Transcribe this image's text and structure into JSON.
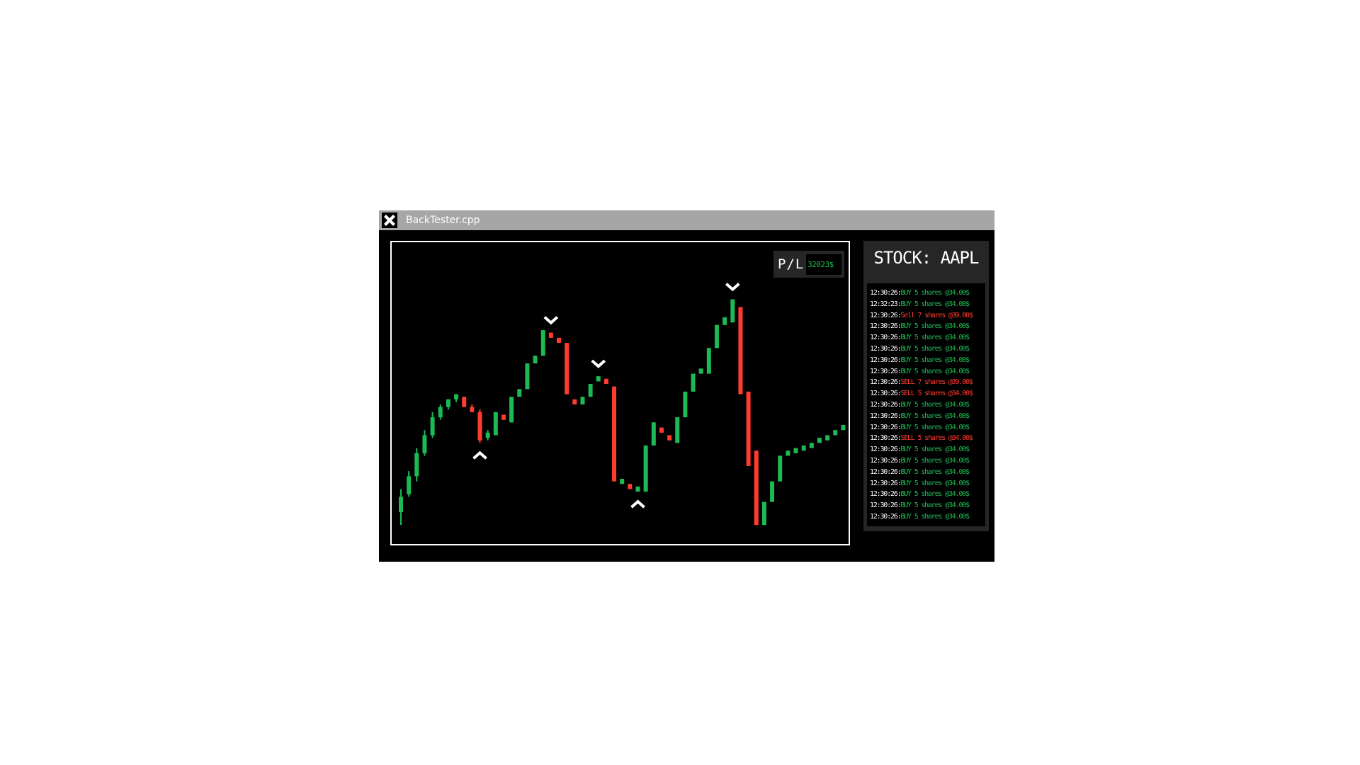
{
  "window": {
    "title": "BackTester.cpp"
  },
  "pl": {
    "label": "P/L:",
    "value": "32023$"
  },
  "stock": {
    "title": "STOCK: AAPL"
  },
  "colors": {
    "buy": "#1db954",
    "sell": "#ff3b30",
    "panel": "#262626",
    "titlebar": "#a6a6a6"
  },
  "log": [
    {
      "time": "12:30:26",
      "text": "BUY 5 shares @34.00$",
      "side": "buy"
    },
    {
      "time": "12:32:23",
      "text": "BUY 5 shares @34.00$",
      "side": "buy"
    },
    {
      "time": "12:30:26",
      "text": "Sell 7 shares @39.00$",
      "side": "sell"
    },
    {
      "time": "12:30:26",
      "text": "BUY 5 shares @34.00$",
      "side": "buy"
    },
    {
      "time": "12:30:26",
      "text": "BUY 5 shares @34.00$",
      "side": "buy"
    },
    {
      "time": "12:30:26",
      "text": "BUY 5 shares @34.00$",
      "side": "buy"
    },
    {
      "time": "12:30:26",
      "text": "BUY 5 shares @34.00$",
      "side": "buy"
    },
    {
      "time": "12:30:26",
      "text": "BUY 5 shares @34.00$",
      "side": "buy"
    },
    {
      "time": "12:30:26",
      "text": "SELL 7 shares @39.00$",
      "side": "sell"
    },
    {
      "time": "12:30:26",
      "text": "SELL 5 shares @34.00$",
      "side": "sell"
    },
    {
      "time": "12:30:26",
      "text": "BUY 5 shares @34.00$",
      "side": "buy"
    },
    {
      "time": "12:30:26",
      "text": "BUY 5 shares @34.00$",
      "side": "buy"
    },
    {
      "time": "12:30:26",
      "text": "BUY 5 shares @34.00$",
      "side": "buy"
    },
    {
      "time": "12:30:26",
      "text": "SELL 5 shares @34.00$",
      "side": "sell"
    },
    {
      "time": "12:30:26",
      "text": "BUY 5 shares @34.00$",
      "side": "buy"
    },
    {
      "time": "12:30:26",
      "text": "BUY 5 shares @34.00$",
      "side": "buy"
    },
    {
      "time": "12:30:26",
      "text": "BUY 5 shares @34.00$",
      "side": "buy"
    },
    {
      "time": "12:30:26",
      "text": "BUY 5 shares @34.00$",
      "side": "buy"
    },
    {
      "time": "12:30:26",
      "text": "BUY 5 shares @34.00$",
      "side": "buy"
    },
    {
      "time": "12:30:26",
      "text": "BUY 5 shares @34.00$",
      "side": "buy"
    },
    {
      "time": "12:30:26",
      "text": "BUY 5 shares @34.00$",
      "side": "buy"
    }
  ],
  "chart_data": {
    "type": "candlestick",
    "title": "",
    "xlabel": "",
    "ylabel": "",
    "ylim": [
      0,
      100
    ],
    "grid": false,
    "candles": [
      {
        "o": 8,
        "h": 17,
        "l": 3,
        "c": 14
      },
      {
        "o": 15,
        "h": 24,
        "l": 14,
        "c": 22
      },
      {
        "o": 22,
        "h": 33,
        "l": 20,
        "c": 31
      },
      {
        "o": 31,
        "h": 40,
        "l": 30,
        "c": 38
      },
      {
        "o": 38,
        "h": 47,
        "l": 37,
        "c": 45
      },
      {
        "o": 45,
        "h": 50,
        "l": 44,
        "c": 49
      },
      {
        "o": 49,
        "h": 52,
        "l": 48,
        "c": 52
      },
      {
        "o": 52,
        "h": 54,
        "l": 51,
        "c": 54
      },
      {
        "o": 53,
        "h": 53,
        "l": 49,
        "c": 49
      },
      {
        "o": 49,
        "h": 50,
        "l": 47,
        "c": 47
      },
      {
        "o": 47,
        "h": 48,
        "l": 35,
        "c": 36
      },
      {
        "o": 37,
        "h": 40,
        "l": 36,
        "c": 39
      },
      {
        "o": 38,
        "h": 47,
        "l": 38,
        "c": 47
      },
      {
        "o": 46,
        "h": 46,
        "l": 44,
        "c": 44
      },
      {
        "o": 43,
        "h": 53,
        "l": 43,
        "c": 53
      },
      {
        "o": 53,
        "h": 56,
        "l": 53,
        "c": 56
      },
      {
        "o": 56,
        "h": 66,
        "l": 56,
        "c": 66
      },
      {
        "o": 66,
        "h": 69,
        "l": 66,
        "c": 69
      },
      {
        "o": 69,
        "h": 79,
        "l": 69,
        "c": 79
      },
      {
        "o": 78,
        "h": 78,
        "l": 76,
        "c": 76
      },
      {
        "o": 76,
        "h": 76,
        "l": 74,
        "c": 74
      },
      {
        "o": 74,
        "h": 74,
        "l": 54,
        "c": 54
      },
      {
        "o": 52,
        "h": 52,
        "l": 50,
        "c": 50
      },
      {
        "o": 50,
        "h": 53,
        "l": 50,
        "c": 53
      },
      {
        "o": 53,
        "h": 58,
        "l": 53,
        "c": 58
      },
      {
        "o": 59,
        "h": 61,
        "l": 59,
        "c": 61
      },
      {
        "o": 60,
        "h": 60,
        "l": 58,
        "c": 58
      },
      {
        "o": 57,
        "h": 57,
        "l": 20,
        "c": 20
      },
      {
        "o": 19,
        "h": 21,
        "l": 19,
        "c": 21
      },
      {
        "o": 19,
        "h": 19,
        "l": 17,
        "c": 17
      },
      {
        "o": 16,
        "h": 18,
        "l": 16,
        "c": 18
      },
      {
        "o": 16,
        "h": 34,
        "l": 16,
        "c": 34
      },
      {
        "o": 34,
        "h": 43,
        "l": 34,
        "c": 43
      },
      {
        "o": 41,
        "h": 41,
        "l": 39,
        "c": 39
      },
      {
        "o": 38,
        "h": 38,
        "l": 36,
        "c": 36
      },
      {
        "o": 35,
        "h": 45,
        "l": 35,
        "c": 45
      },
      {
        "o": 45,
        "h": 55,
        "l": 45,
        "c": 55
      },
      {
        "o": 55,
        "h": 62,
        "l": 55,
        "c": 62
      },
      {
        "o": 62,
        "h": 64,
        "l": 62,
        "c": 64
      },
      {
        "o": 62,
        "h": 72,
        "l": 62,
        "c": 72
      },
      {
        "o": 72,
        "h": 81,
        "l": 72,
        "c": 81
      },
      {
        "o": 81,
        "h": 84,
        "l": 81,
        "c": 84
      },
      {
        "o": 82,
        "h": 91,
        "l": 82,
        "c": 91
      },
      {
        "o": 88,
        "h": 88,
        "l": 54,
        "c": 54
      },
      {
        "o": 55,
        "h": 55,
        "l": 26,
        "c": 26
      },
      {
        "o": 32,
        "h": 32,
        "l": 3,
        "c": 3
      },
      {
        "o": 3,
        "h": 12,
        "l": 3,
        "c": 12
      },
      {
        "o": 12,
        "h": 20,
        "l": 12,
        "c": 20
      },
      {
        "o": 20,
        "h": 30,
        "l": 20,
        "c": 30
      },
      {
        "o": 30,
        "h": 32,
        "l": 30,
        "c": 32
      },
      {
        "o": 31,
        "h": 33,
        "l": 31,
        "c": 33
      },
      {
        "o": 32,
        "h": 34,
        "l": 32,
        "c": 34
      },
      {
        "o": 33,
        "h": 35,
        "l": 33,
        "c": 35
      },
      {
        "o": 35,
        "h": 37,
        "l": 35,
        "c": 37
      },
      {
        "o": 36,
        "h": 38,
        "l": 36,
        "c": 38
      },
      {
        "o": 38,
        "h": 40,
        "l": 38,
        "c": 40
      },
      {
        "o": 40,
        "h": 42,
        "l": 40,
        "c": 42
      }
    ],
    "markers": [
      {
        "index": 10,
        "type": "buy"
      },
      {
        "index": 19,
        "type": "sell"
      },
      {
        "index": 25,
        "type": "sell"
      },
      {
        "index": 30,
        "type": "buy"
      },
      {
        "index": 42,
        "type": "sell"
      }
    ]
  }
}
